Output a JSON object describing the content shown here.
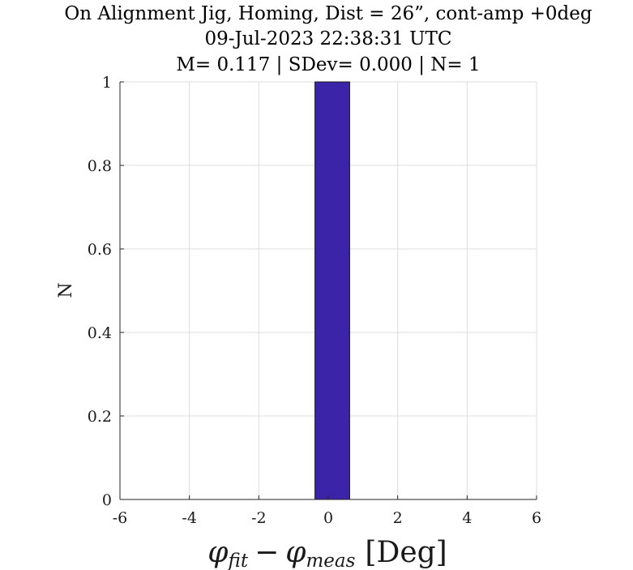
{
  "chart_data": {
    "type": "bar",
    "title_lines": [
      "On Alignment Jig, Homing, Dist = 26”, cont-amp +0deg",
      "09-Jul-2023 22:38:31 UTC",
      "M= 0.117 | SDev= 0.000 | N= 1"
    ],
    "xlabel": {
      "phi1": "φ",
      "sub1": "fit",
      "minus": "−",
      "phi2": "φ",
      "sub2": "meas",
      "unit": "[Deg]"
    },
    "ylabel": "N",
    "xlim": [
      -6,
      6
    ],
    "ylim": [
      0,
      1
    ],
    "xticks": [
      -6,
      -4,
      -2,
      0,
      2,
      4,
      6
    ],
    "yticks": [
      0,
      0.2,
      0.4,
      0.6,
      0.8,
      1
    ],
    "xtick_labels": [
      "-6",
      "-4",
      "-2",
      "0",
      "2",
      "4",
      "6"
    ],
    "ytick_labels": [
      "0",
      "0.2",
      "0.4",
      "0.6",
      "0.8",
      "1"
    ],
    "bin_edges": [
      -5.383,
      -4.383,
      -3.383,
      -2.383,
      -1.383,
      -0.383,
      0.617,
      1.617,
      2.617,
      3.617,
      4.617
    ],
    "values": [
      0,
      0,
      0,
      0,
      0,
      1,
      0,
      0,
      0,
      0
    ],
    "grid": true,
    "bar_color": "#3b24a8",
    "bar_edge_color": "#1a1a1a"
  }
}
